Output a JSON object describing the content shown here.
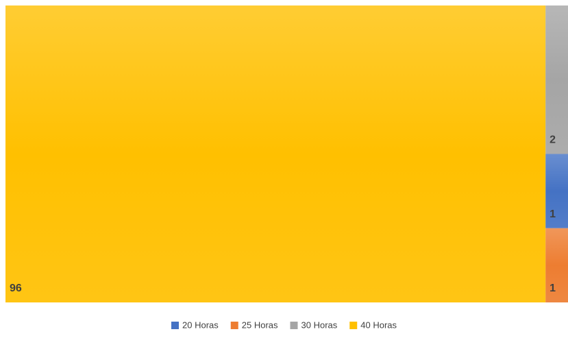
{
  "chart_data": {
    "type": "treemap",
    "categories": [
      "20 Horas",
      "25 Horas",
      "30 Horas",
      "40 Horas"
    ],
    "values": [
      1,
      1,
      2,
      96
    ],
    "colors": [
      "#4472c4",
      "#ed7d31",
      "#a5a5a5",
      "#ffc000"
    ],
    "legend": "bottom"
  }
}
